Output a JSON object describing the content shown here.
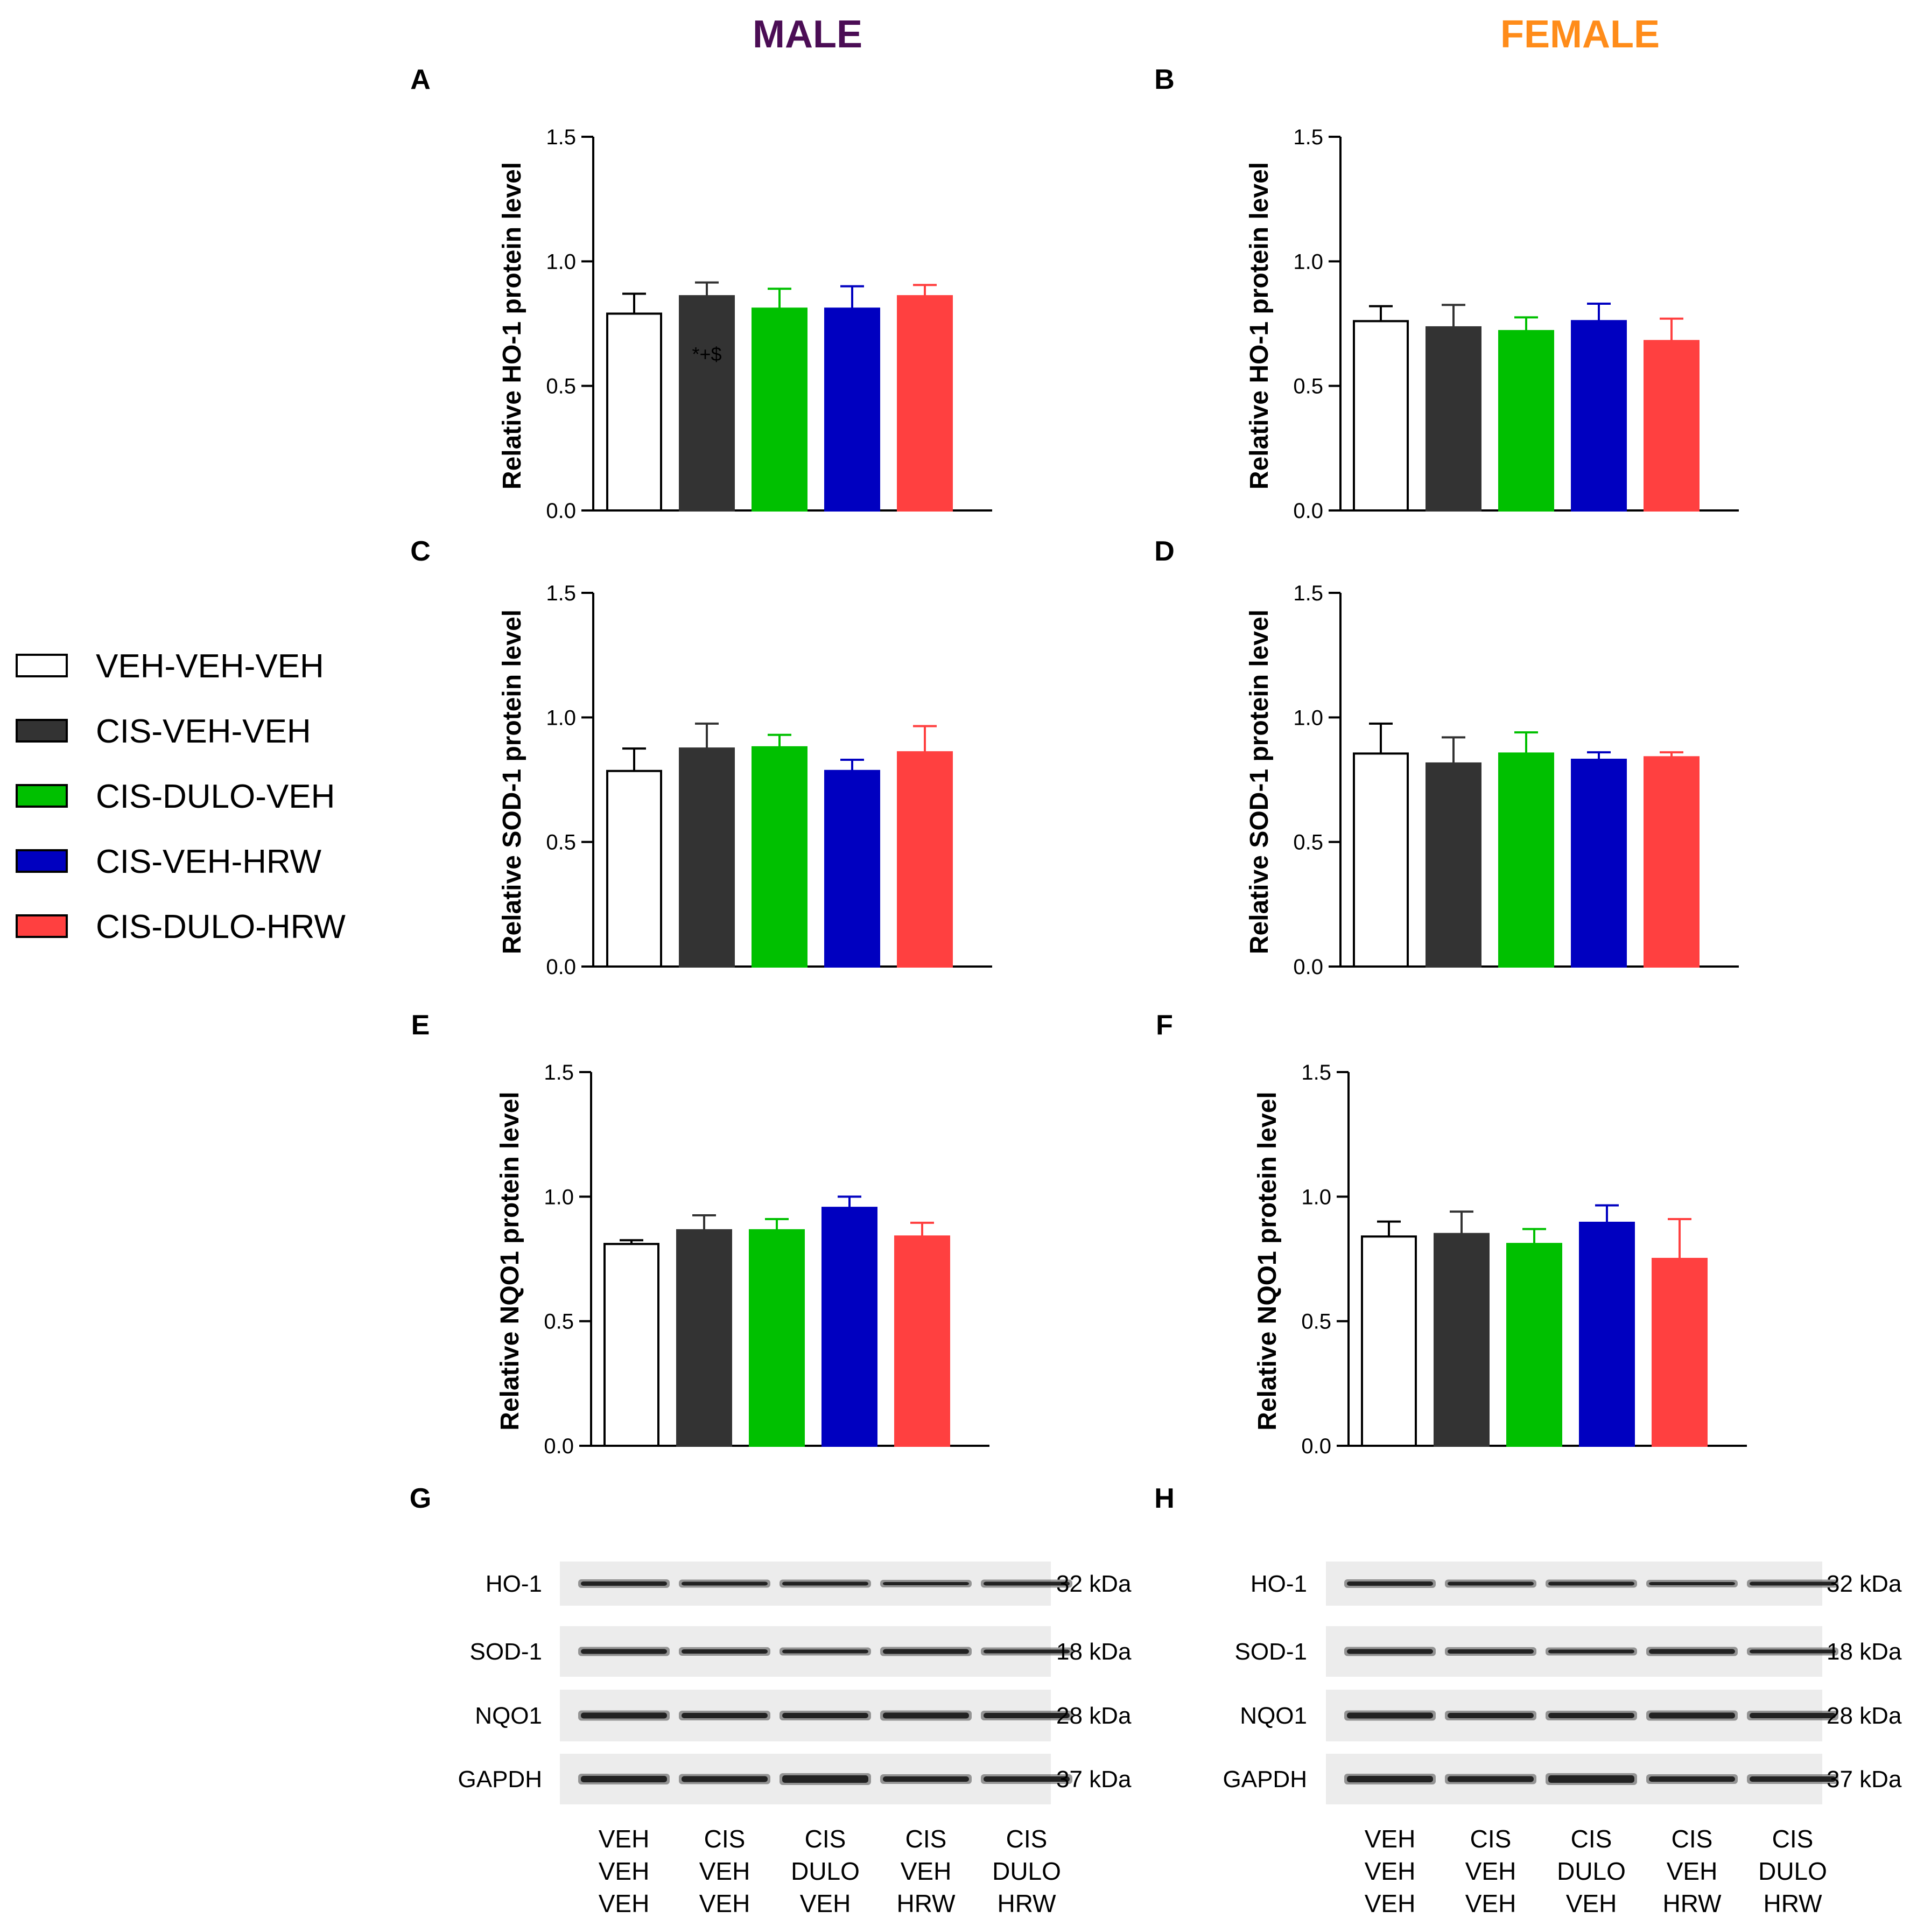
{
  "headers": {
    "male": "MALE",
    "female": "FEMALE"
  },
  "colors": {
    "male": "#4b0d55",
    "female": "#ff8c1a"
  },
  "legend": [
    {
      "label": "VEH-VEH-VEH",
      "color": "#ffffff"
    },
    {
      "label": "CIS-VEH-VEH",
      "color": "#333333"
    },
    {
      "label": "CIS-DULO-VEH",
      "color": "#00c000"
    },
    {
      "label": "CIS-VEH-HRW",
      "color": "#0000c0"
    },
    {
      "label": "CIS-DULO-HRW",
      "color": "#ff4040"
    }
  ],
  "chart_data": [
    {
      "panel": "A",
      "type": "bar",
      "sex": "male",
      "ylabel": "Relative HO-1 protein level",
      "ylim": [
        0,
        1.5
      ],
      "yticks": [
        "0.0",
        "0.5",
        "1.0",
        "1.5"
      ],
      "categories": [
        "VEH-VEH-VEH",
        "CIS-VEH-VEH",
        "CIS-DULO-VEH",
        "CIS-VEH-HRW",
        "CIS-DULO-HRW"
      ],
      "values": [
        0.79,
        0.86,
        0.81,
        0.81,
        0.86
      ],
      "errors": [
        0.08,
        0.055,
        0.08,
        0.09,
        0.045
      ],
      "annotation": {
        "bar": 1,
        "text": "*+$"
      }
    },
    {
      "panel": "B",
      "type": "bar",
      "sex": "female",
      "ylabel": "Relative HO-1 protein level",
      "ylim": [
        0,
        1.5
      ],
      "yticks": [
        "0.0",
        "0.5",
        "1.0",
        "1.5"
      ],
      "categories": [
        "VEH-VEH-VEH",
        "CIS-VEH-VEH",
        "CIS-DULO-VEH",
        "CIS-VEH-HRW",
        "CIS-DULO-HRW"
      ],
      "values": [
        0.76,
        0.735,
        0.72,
        0.76,
        0.68
      ],
      "errors": [
        0.06,
        0.09,
        0.055,
        0.07,
        0.09
      ]
    },
    {
      "panel": "C",
      "type": "bar",
      "sex": "male",
      "ylabel": "Relative SOD-1 protein level",
      "ylim": [
        0,
        1.5
      ],
      "yticks": [
        "0.0",
        "0.5",
        "1.0",
        "1.5"
      ],
      "categories": [
        "VEH-VEH-VEH",
        "CIS-VEH-VEH",
        "CIS-DULO-VEH",
        "CIS-VEH-HRW",
        "CIS-DULO-HRW"
      ],
      "values": [
        0.785,
        0.875,
        0.88,
        0.785,
        0.86
      ],
      "errors": [
        0.09,
        0.1,
        0.05,
        0.045,
        0.105
      ]
    },
    {
      "panel": "D",
      "type": "bar",
      "sex": "female",
      "ylabel": "Relative SOD-1 protein level",
      "ylim": [
        0,
        1.5
      ],
      "yticks": [
        "0.0",
        "0.5",
        "1.0",
        "1.5"
      ],
      "categories": [
        "VEH-VEH-VEH",
        "CIS-VEH-VEH",
        "CIS-DULO-VEH",
        "CIS-VEH-HRW",
        "CIS-DULO-HRW"
      ],
      "values": [
        0.855,
        0.815,
        0.855,
        0.83,
        0.84
      ],
      "errors": [
        0.12,
        0.105,
        0.085,
        0.03,
        0.02
      ]
    },
    {
      "panel": "E",
      "type": "bar",
      "sex": "male",
      "ylabel": "Relative NQO1 protein level",
      "ylim": [
        0,
        1.5
      ],
      "yticks": [
        "0.0",
        "0.5",
        "1.0",
        "1.5"
      ],
      "categories": [
        "VEH-VEH-VEH",
        "CIS-VEH-VEH",
        "CIS-DULO-VEH",
        "CIS-VEH-HRW",
        "CIS-DULO-HRW"
      ],
      "values": [
        0.81,
        0.865,
        0.865,
        0.955,
        0.84
      ],
      "errors": [
        0.015,
        0.06,
        0.045,
        0.045,
        0.055
      ]
    },
    {
      "panel": "F",
      "type": "bar",
      "sex": "female",
      "ylabel": "Relative NQO1 protein level",
      "ylim": [
        0,
        1.5
      ],
      "yticks": [
        "0.0",
        "0.5",
        "1.0",
        "1.5"
      ],
      "categories": [
        "VEH-VEH-VEH",
        "CIS-VEH-VEH",
        "CIS-DULO-VEH",
        "CIS-VEH-HRW",
        "CIS-DULO-HRW"
      ],
      "values": [
        0.84,
        0.85,
        0.81,
        0.895,
        0.75
      ],
      "errors": [
        0.06,
        0.09,
        0.06,
        0.07,
        0.16
      ]
    }
  ],
  "blots": [
    {
      "panel": "G",
      "sex": "male",
      "rows": [
        {
          "protein": "HO-1",
          "kda": "32 kDa"
        },
        {
          "protein": "SOD-1",
          "kda": "18 kDa"
        },
        {
          "protein": "NQO1",
          "kda": "28 kDa"
        },
        {
          "protein": "GAPDH",
          "kda": "37 kDa"
        }
      ],
      "lanes": [
        [
          "VEH",
          "VEH",
          "VEH"
        ],
        [
          "CIS",
          "VEH",
          "VEH"
        ],
        [
          "CIS",
          "DULO",
          "VEH"
        ],
        [
          "CIS",
          "VEH",
          "HRW"
        ],
        [
          "CIS",
          "DULO",
          "HRW"
        ]
      ]
    },
    {
      "panel": "H",
      "sex": "female",
      "rows": [
        {
          "protein": "HO-1",
          "kda": "32 kDa"
        },
        {
          "protein": "SOD-1",
          "kda": "18 kDa"
        },
        {
          "protein": "NQO1",
          "kda": "28 kDa"
        },
        {
          "protein": "GAPDH",
          "kda": "37 kDa"
        }
      ],
      "lanes": [
        [
          "VEH",
          "VEH",
          "VEH"
        ],
        [
          "CIS",
          "VEH",
          "VEH"
        ],
        [
          "CIS",
          "DULO",
          "VEH"
        ],
        [
          "CIS",
          "VEH",
          "HRW"
        ],
        [
          "CIS",
          "DULO",
          "HRW"
        ]
      ]
    }
  ]
}
